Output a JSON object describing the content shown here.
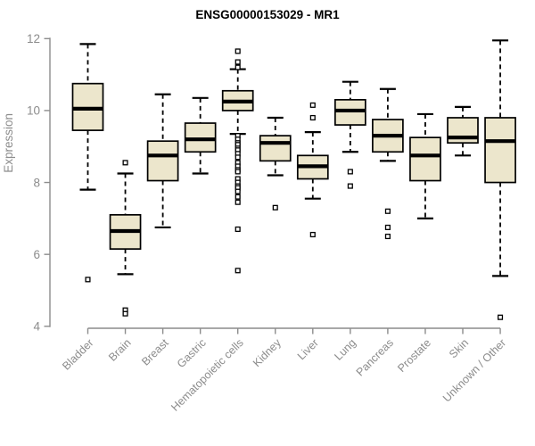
{
  "colors": {
    "background": "#ffffff",
    "box_fill": "#ece6cc",
    "box_border": "#000000",
    "median": "#000000",
    "whisker": "#000000",
    "outlier_fill": "#ffffff",
    "axis": "#8c8c8c",
    "title": "#000000"
  },
  "chart_data": {
    "type": "boxplot",
    "title": "ENSG00000153029 - MR1",
    "xlabel": "",
    "ylabel": "Expression",
    "ylim": [
      4,
      12
    ],
    "yticks": [
      4,
      6,
      8,
      10,
      12
    ],
    "grid": false,
    "categories": [
      "Bladder",
      "Brain",
      "Breast",
      "Gastric",
      "Hematopoietic cells",
      "Kidney",
      "Liver",
      "Lung",
      "Pancreas",
      "Prostate",
      "Skin",
      "Unknown / Other"
    ],
    "boxes": [
      {
        "category": "Bladder",
        "whisker_low": 7.8,
        "q1": 9.45,
        "median": 10.05,
        "q3": 10.75,
        "whisker_high": 11.85,
        "outliers": [
          5.3
        ]
      },
      {
        "category": "Brain",
        "whisker_low": 5.45,
        "q1": 6.15,
        "median": 6.65,
        "q3": 7.1,
        "whisker_high": 8.25,
        "outliers": [
          8.55,
          4.45,
          4.35
        ]
      },
      {
        "category": "Breast",
        "whisker_low": 6.75,
        "q1": 8.05,
        "median": 8.75,
        "q3": 9.15,
        "whisker_high": 10.45,
        "outliers": []
      },
      {
        "category": "Gastric",
        "whisker_low": 8.25,
        "q1": 8.85,
        "median": 9.2,
        "q3": 9.65,
        "whisker_high": 10.35,
        "outliers": []
      },
      {
        "category": "Hematopoietic cells",
        "whisker_low": 9.35,
        "q1": 10.0,
        "median": 10.25,
        "q3": 10.55,
        "whisker_high": 11.15,
        "outliers": [
          11.65,
          11.35,
          11.2,
          9.3,
          9.2,
          9.1,
          9.05,
          8.95,
          8.9,
          8.8,
          8.7,
          8.55,
          8.45,
          8.35,
          8.3,
          8.1,
          8.0,
          7.9,
          7.85,
          7.75,
          7.6,
          7.45,
          6.7,
          5.55
        ]
      },
      {
        "category": "Kidney",
        "whisker_low": 8.2,
        "q1": 8.6,
        "median": 9.1,
        "q3": 9.3,
        "whisker_high": 9.8,
        "outliers": [
          7.3
        ]
      },
      {
        "category": "Liver",
        "whisker_low": 7.55,
        "q1": 8.1,
        "median": 8.45,
        "q3": 8.75,
        "whisker_high": 9.4,
        "outliers": [
          10.15,
          9.8,
          6.55
        ]
      },
      {
        "category": "Lung",
        "whisker_low": 8.85,
        "q1": 9.6,
        "median": 10.0,
        "q3": 10.3,
        "whisker_high": 10.8,
        "outliers": [
          8.3,
          7.9
        ]
      },
      {
        "category": "Pancreas",
        "whisker_low": 8.6,
        "q1": 8.85,
        "median": 9.3,
        "q3": 9.75,
        "whisker_high": 10.6,
        "outliers": [
          7.2,
          6.75,
          6.5
        ]
      },
      {
        "category": "Prostate",
        "whisker_low": 7.0,
        "q1": 8.05,
        "median": 8.75,
        "q3": 9.25,
        "whisker_high": 9.9,
        "outliers": []
      },
      {
        "category": "Skin",
        "whisker_low": 8.75,
        "q1": 9.1,
        "median": 9.25,
        "q3": 9.8,
        "whisker_high": 10.1,
        "outliers": []
      },
      {
        "category": "Unknown / Other",
        "whisker_low": 5.4,
        "q1": 8.0,
        "median": 9.15,
        "q3": 9.8,
        "whisker_high": 11.95,
        "outliers": [
          4.25
        ]
      }
    ]
  }
}
